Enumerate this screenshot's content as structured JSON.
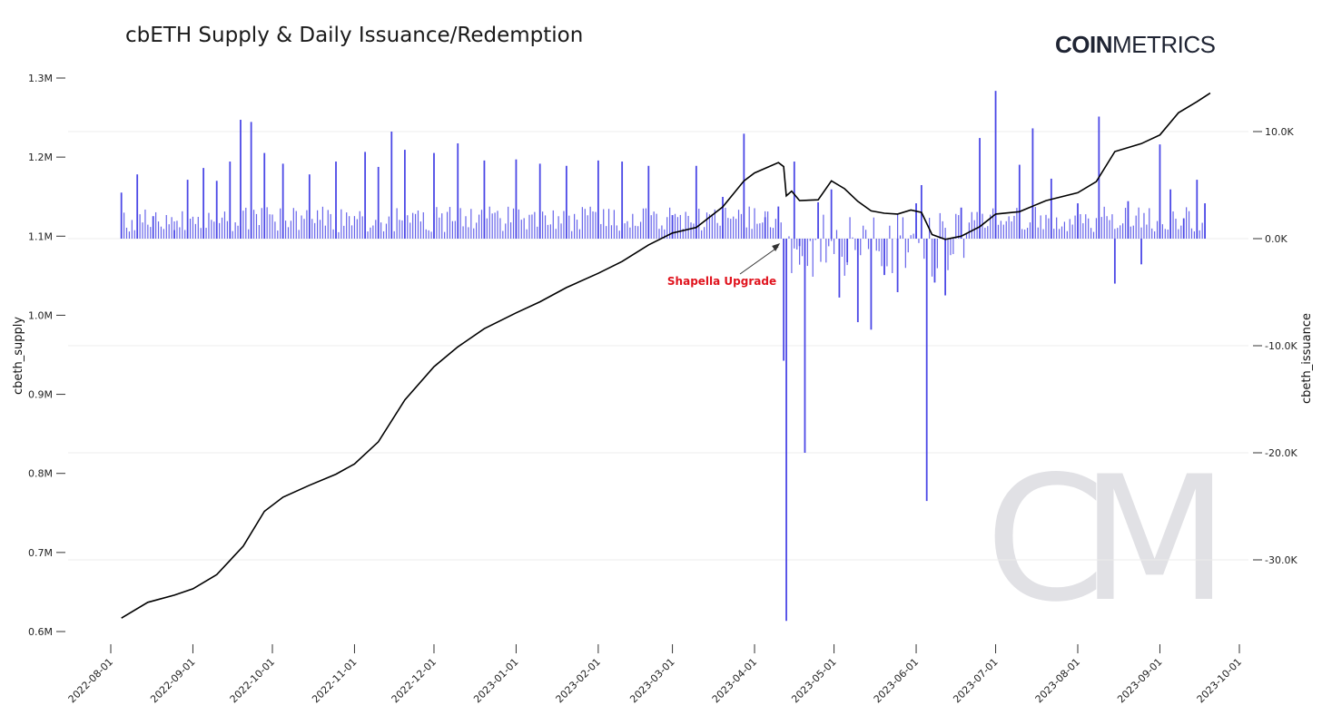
{
  "title": "cbETH Supply & Daily Issuance/Redemption",
  "brand": {
    "bold": "COIN",
    "light": "METRICS"
  },
  "colors": {
    "supply_line": "#000000",
    "issuance_bars": "#4b48e6",
    "annotation": "#e0141e",
    "grid": "#ececec",
    "watermark": "#d9d9de"
  },
  "watermark_text": "CM",
  "chart_data": {
    "type": "line+bar",
    "xlabel": "",
    "ylabel_left": "cbeth_supply",
    "ylabel_right": "cbeth_issuance",
    "x_ticks": [
      "2022-08-01",
      "2022-09-01",
      "2022-10-01",
      "2022-11-01",
      "2022-12-01",
      "2023-01-01",
      "2023-02-01",
      "2023-03-01",
      "2023-04-01",
      "2023-05-01",
      "2023-06-01",
      "2023-07-01",
      "2023-08-01",
      "2023-09-01",
      "2023-10-01"
    ],
    "y_left": {
      "range": [
        600000,
        1300000
      ],
      "ticks": [
        {
          "value": 600000,
          "label": "0.6M"
        },
        {
          "value": 700000,
          "label": "0.7M"
        },
        {
          "value": 800000,
          "label": "0.8M"
        },
        {
          "value": 900000,
          "label": "0.9M"
        },
        {
          "value": 1000000,
          "label": "1.0M"
        },
        {
          "value": 1100000,
          "label": "1.1M"
        },
        {
          "value": 1200000,
          "label": "1.2M"
        },
        {
          "value": 1300000,
          "label": "1.3M"
        }
      ]
    },
    "y_right": {
      "range": [
        -36000,
        20500
      ],
      "ticks": [
        {
          "value": 10000,
          "label": "10.0K"
        },
        {
          "value": 0,
          "label": "0.0K"
        },
        {
          "value": -10000,
          "label": "-10.0K"
        },
        {
          "value": -20000,
          "label": "-20.0K"
        },
        {
          "value": -30000,
          "label": "-30.0K"
        }
      ]
    },
    "grid": "horizontal (right axis)",
    "annotation": {
      "text": "Shapella Upgrade",
      "date": "2023-04-12",
      "value": 0
    },
    "supply_series": {
      "name": "cbeth_supply",
      "points": [
        [
          "2022-08-05",
          617000
        ],
        [
          "2022-08-15",
          637000
        ],
        [
          "2022-08-25",
          646000
        ],
        [
          "2022-09-01",
          654000
        ],
        [
          "2022-09-10",
          672000
        ],
        [
          "2022-09-20",
          708000
        ],
        [
          "2022-09-28",
          752000
        ],
        [
          "2022-10-05",
          770000
        ],
        [
          "2022-10-15",
          785000
        ],
        [
          "2022-10-25",
          799000
        ],
        [
          "2022-11-01",
          812000
        ],
        [
          "2022-11-10",
          840000
        ],
        [
          "2022-11-20",
          893000
        ],
        [
          "2022-12-01",
          935000
        ],
        [
          "2022-12-10",
          960000
        ],
        [
          "2022-12-20",
          983000
        ],
        [
          "2023-01-01",
          1003000
        ],
        [
          "2023-01-10",
          1017000
        ],
        [
          "2023-01-20",
          1035000
        ],
        [
          "2023-02-01",
          1053000
        ],
        [
          "2023-02-10",
          1068000
        ],
        [
          "2023-02-20",
          1089000
        ],
        [
          "2023-03-01",
          1104000
        ],
        [
          "2023-03-10",
          1111000
        ],
        [
          "2023-03-20",
          1137000
        ],
        [
          "2023-03-28",
          1170000
        ],
        [
          "2023-04-01",
          1180000
        ],
        [
          "2023-04-10",
          1193000
        ],
        [
          "2023-04-12",
          1188000
        ],
        [
          "2023-04-13",
          1151000
        ],
        [
          "2023-04-15",
          1157000
        ],
        [
          "2023-04-18",
          1145000
        ],
        [
          "2023-04-25",
          1146000
        ],
        [
          "2023-04-30",
          1170000
        ],
        [
          "2023-05-05",
          1160000
        ],
        [
          "2023-05-10",
          1144000
        ],
        [
          "2023-05-15",
          1132000
        ],
        [
          "2023-05-20",
          1129000
        ],
        [
          "2023-05-25",
          1128000
        ],
        [
          "2023-05-30",
          1133000
        ],
        [
          "2023-06-03",
          1130000
        ],
        [
          "2023-06-07",
          1102000
        ],
        [
          "2023-06-12",
          1096000
        ],
        [
          "2023-06-18",
          1100000
        ],
        [
          "2023-06-25",
          1112000
        ],
        [
          "2023-07-01",
          1128000
        ],
        [
          "2023-07-10",
          1131000
        ],
        [
          "2023-07-20",
          1145000
        ],
        [
          "2023-08-01",
          1155000
        ],
        [
          "2023-08-08",
          1169000
        ],
        [
          "2023-08-15",
          1207000
        ],
        [
          "2023-08-25",
          1217000
        ],
        [
          "2023-09-01",
          1228000
        ],
        [
          "2023-09-08",
          1256000
        ],
        [
          "2023-09-15",
          1270000
        ],
        [
          "2023-09-20",
          1281000
        ]
      ]
    },
    "issuance_series": {
      "name": "cbeth_issuance",
      "unit_note": "",
      "bars": [
        [
          "2022-08-05",
          4300
        ],
        [
          "2022-08-11",
          6000
        ],
        [
          "2022-08-17",
          2100
        ],
        [
          "2022-08-25",
          800
        ],
        [
          "2022-08-30",
          5500
        ],
        [
          "2022-09-05",
          6600
        ],
        [
          "2022-09-10",
          5400
        ],
        [
          "2022-09-15",
          7200
        ],
        [
          "2022-09-19",
          11100
        ],
        [
          "2022-09-23",
          10900
        ],
        [
          "2022-09-28",
          8000
        ],
        [
          "2022-10-05",
          7000
        ],
        [
          "2022-10-15",
          6000
        ],
        [
          "2022-10-25",
          7200
        ],
        [
          "2022-11-05",
          8100
        ],
        [
          "2022-11-10",
          6700
        ],
        [
          "2022-11-15",
          10000
        ],
        [
          "2022-11-20",
          8300
        ],
        [
          "2022-12-01",
          8000
        ],
        [
          "2022-12-10",
          8900
        ],
        [
          "2022-12-20",
          7300
        ],
        [
          "2023-01-01",
          7400
        ],
        [
          "2023-01-10",
          7000
        ],
        [
          "2023-01-20",
          6800
        ],
        [
          "2023-02-01",
          7300
        ],
        [
          "2023-02-10",
          7200
        ],
        [
          "2023-02-20",
          6800
        ],
        [
          "2023-03-01",
          2200
        ],
        [
          "2023-03-10",
          6800
        ],
        [
          "2023-03-20",
          3900
        ],
        [
          "2023-03-28",
          9800
        ],
        [
          "2023-04-05",
          2000
        ],
        [
          "2023-04-10",
          3000
        ],
        [
          "2023-04-12",
          -11400
        ],
        [
          "2023-04-13",
          -35700
        ],
        [
          "2023-04-16",
          7200
        ],
        [
          "2023-04-18",
          -700
        ],
        [
          "2023-04-20",
          -20000
        ],
        [
          "2023-04-25",
          3400
        ],
        [
          "2023-04-30",
          4600
        ],
        [
          "2023-05-03",
          -5500
        ],
        [
          "2023-05-06",
          -2200
        ],
        [
          "2023-05-10",
          -7800
        ],
        [
          "2023-05-15",
          -8500
        ],
        [
          "2023-05-20",
          -3400
        ],
        [
          "2023-05-25",
          -5000
        ],
        [
          "2023-06-01",
          3300
        ],
        [
          "2023-06-03",
          5000
        ],
        [
          "2023-06-05",
          -24500
        ],
        [
          "2023-06-08",
          -4100
        ],
        [
          "2023-06-12",
          -5300
        ],
        [
          "2023-06-18",
          2900
        ],
        [
          "2023-06-25",
          9400
        ],
        [
          "2023-07-01",
          13800
        ],
        [
          "2023-07-10",
          6900
        ],
        [
          "2023-07-15",
          10300
        ],
        [
          "2023-07-22",
          5600
        ],
        [
          "2023-08-01",
          3300
        ],
        [
          "2023-08-09",
          11400
        ],
        [
          "2023-08-15",
          -4200
        ],
        [
          "2023-08-20",
          3500
        ],
        [
          "2023-08-25",
          -2400
        ],
        [
          "2023-09-01",
          8800
        ],
        [
          "2023-09-05",
          4600
        ],
        [
          "2023-09-10",
          1900
        ],
        [
          "2023-09-15",
          5500
        ],
        [
          "2023-09-18",
          3300
        ]
      ]
    }
  }
}
